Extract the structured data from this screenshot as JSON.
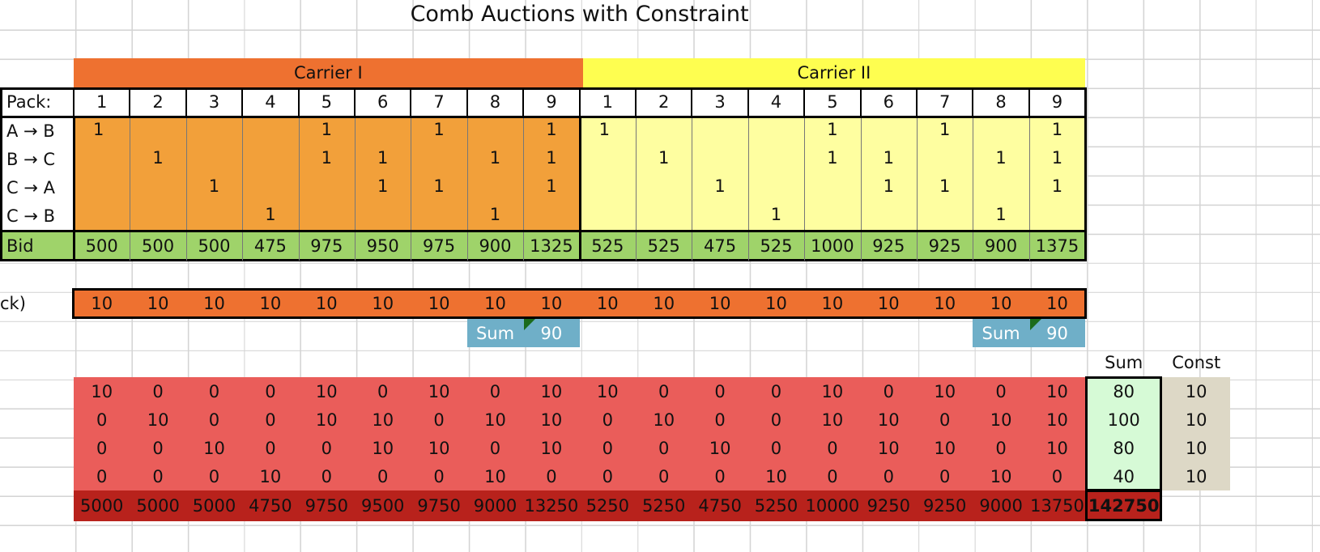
{
  "title": "Comb Auctions with Constraint",
  "carriers": [
    "Carrier I",
    "Carrier II"
  ],
  "pack_label": "Pack:",
  "packs": [
    "1",
    "2",
    "3",
    "4",
    "5",
    "6",
    "7",
    "8",
    "9"
  ],
  "routes": [
    "A → B",
    "B → C",
    "C → A",
    "C → B"
  ],
  "matrix": [
    [
      [
        "1",
        "",
        "",
        "",
        "1",
        "",
        "1",
        "",
        "1"
      ],
      [
        "",
        "1",
        "",
        "",
        "1",
        "1",
        "",
        "1",
        "1"
      ],
      [
        "",
        "",
        "1",
        "",
        "",
        "1",
        "1",
        "",
        "1"
      ],
      [
        "",
        "",
        "",
        "1",
        "",
        "",
        "",
        "1",
        ""
      ]
    ],
    [
      [
        "1",
        "",
        "",
        "",
        "1",
        "",
        "1",
        "",
        "1"
      ],
      [
        "",
        "1",
        "",
        "",
        "1",
        "1",
        "",
        "1",
        "1"
      ],
      [
        "",
        "",
        "1",
        "",
        "",
        "1",
        "1",
        "",
        "1"
      ],
      [
        "",
        "",
        "",
        "1",
        "",
        "",
        "",
        "1",
        ""
      ]
    ]
  ],
  "bid_label": "Bid",
  "bids": [
    [
      "500",
      "500",
      "500",
      "475",
      "975",
      "950",
      "975",
      "900",
      "1325"
    ],
    [
      "525",
      "525",
      "475",
      "525",
      "1000",
      "925",
      "925",
      "900",
      "1375"
    ]
  ],
  "partial_label": "ck)",
  "allocations": [
    "10",
    "10",
    "10",
    "10",
    "10",
    "10",
    "10",
    "10",
    "10",
    "10",
    "10",
    "10",
    "10",
    "10",
    "10",
    "10",
    "10",
    "10"
  ],
  "sum_label": "Sum",
  "carrier_sums": [
    "90",
    "90"
  ],
  "sum_header": "Sum",
  "const_header": "Const",
  "usage": [
    [
      "10",
      "0",
      "0",
      "0",
      "10",
      "0",
      "10",
      "0",
      "10",
      "10",
      "0",
      "0",
      "0",
      "10",
      "0",
      "10",
      "0",
      "10"
    ],
    [
      "0",
      "10",
      "0",
      "0",
      "10",
      "10",
      "0",
      "10",
      "10",
      "0",
      "10",
      "0",
      "0",
      "10",
      "10",
      "0",
      "10",
      "10"
    ],
    [
      "0",
      "0",
      "10",
      "0",
      "0",
      "10",
      "10",
      "0",
      "10",
      "0",
      "0",
      "10",
      "0",
      "0",
      "10",
      "10",
      "0",
      "10"
    ],
    [
      "0",
      "0",
      "0",
      "10",
      "0",
      "0",
      "0",
      "10",
      "0",
      "0",
      "0",
      "0",
      "10",
      "0",
      "0",
      "0",
      "10",
      "0"
    ]
  ],
  "route_sums": [
    "80",
    "100",
    "80",
    "40"
  ],
  "consts": [
    "10",
    "10",
    "10",
    "10"
  ],
  "revenues": [
    "5000",
    "5000",
    "5000",
    "4750",
    "9750",
    "9500",
    "9750",
    "9000",
    "13250",
    "5250",
    "5250",
    "4750",
    "5250",
    "10000",
    "9250",
    "9250",
    "9000",
    "13750"
  ],
  "total": "142750",
  "colors": {
    "carrier1_header": "#ee7130",
    "carrier1_body": "#f2a03a",
    "carrier2_header": "#fefe50",
    "carrier2_body": "#fefea0",
    "bid_row": "#9fd36a",
    "alloc_row": "#ee7130",
    "sum_box": "#6fafc8",
    "usage_block": "#ea5d5a",
    "revenue_row": "#b8221c",
    "sum_col": "#d6fad6",
    "const_col": "#ddd8c6",
    "grid": "#d4d4d4"
  }
}
